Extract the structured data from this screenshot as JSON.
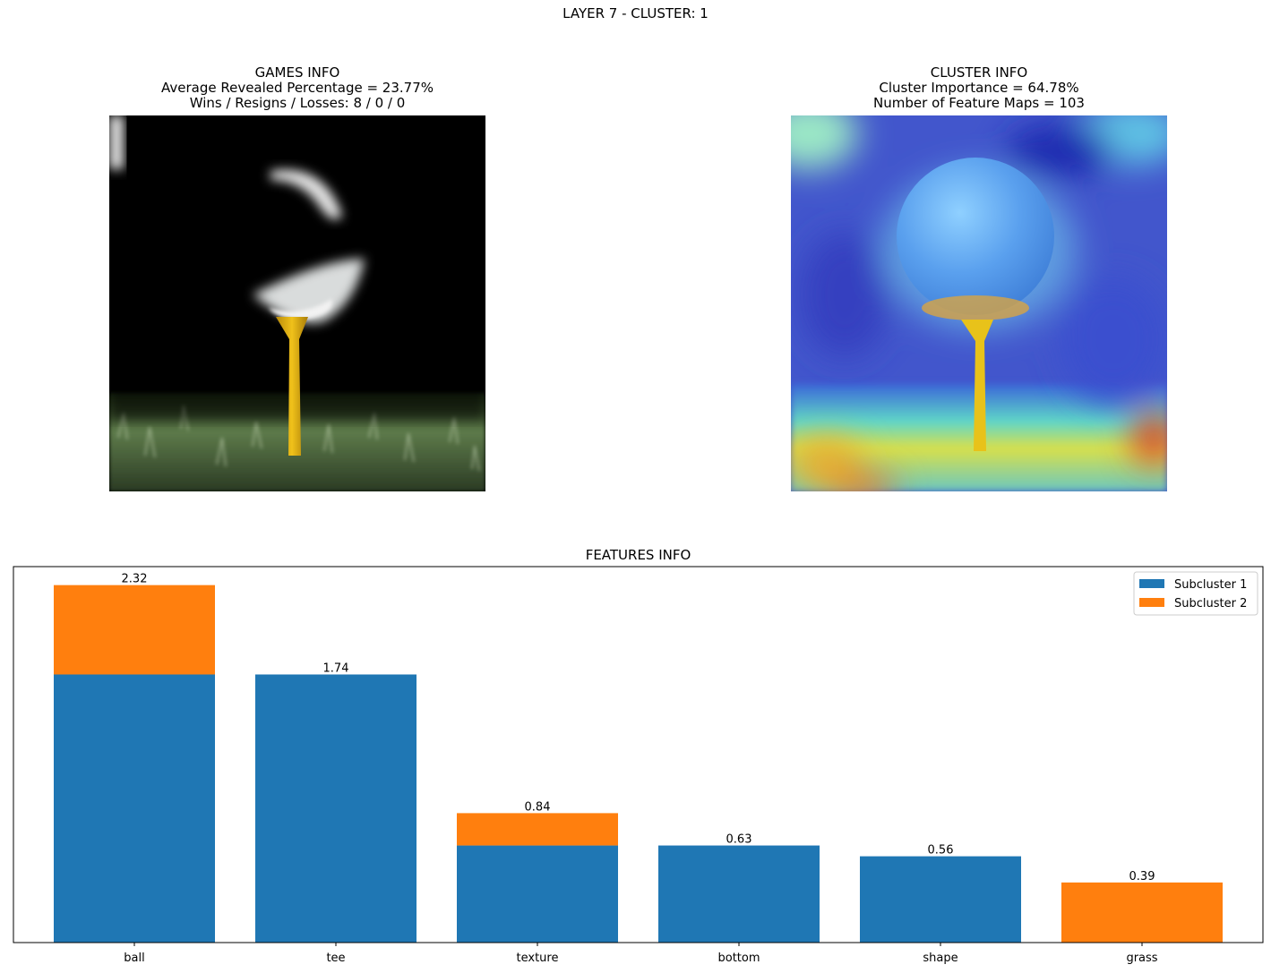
{
  "suptitle": "LAYER 7 - CLUSTER: 1",
  "games_info": {
    "title": "GAMES INFO",
    "line1": "Average Revealed Percentage = 23.77%",
    "line2": "Wins / Resigns / Losses: 8 / 0 / 0"
  },
  "cluster_info": {
    "title": "CLUSTER INFO",
    "line1": "Cluster Importance = 64.78%",
    "line2": "Number of Feature Maps = 103"
  },
  "features_info": {
    "title": "FEATURES INFO"
  },
  "colors": {
    "subcluster_1": "#1f77b4",
    "subcluster_2": "#ff7f0e"
  },
  "chart_data": {
    "type": "bar",
    "stacked": true,
    "title": "FEATURES INFO",
    "categories": [
      "ball",
      "tee",
      "texture",
      "bottom",
      "shape",
      "grass"
    ],
    "series": [
      {
        "name": "Subcluster 1",
        "values": [
          1.74,
          1.74,
          0.63,
          0.63,
          0.56,
          0.0
        ]
      },
      {
        "name": "Subcluster 2",
        "values": [
          0.58,
          0.0,
          0.21,
          0.0,
          0.0,
          0.39
        ]
      }
    ],
    "totals": [
      "2.32",
      "1.74",
      "0.84",
      "0.63",
      "0.56",
      "0.39"
    ],
    "ylim": [
      0,
      2.44
    ],
    "legend": "upper-right",
    "grid": false
  }
}
